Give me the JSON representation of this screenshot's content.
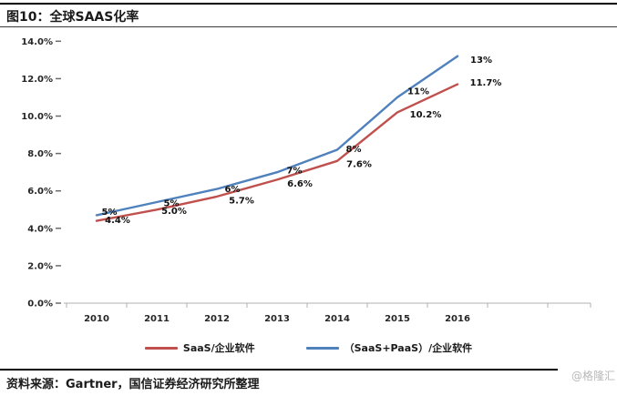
{
  "header": {
    "title": "图10：全球SAAS化率"
  },
  "footer": {
    "source": "资料来源：Gartner，国信证券经济研究所整理",
    "watermark": "@格隆汇"
  },
  "chart_data": {
    "type": "line",
    "title": "全球SAAS化率",
    "categories": [
      "2010",
      "2011",
      "2012",
      "2013",
      "2014",
      "2015",
      "2016"
    ],
    "series": [
      {
        "name": "SaaS/企业软件",
        "color": "#C0504D",
        "values": [
          4.4,
          5.0,
          5.7,
          6.6,
          7.6,
          10.2,
          11.7
        ],
        "labels": [
          "4.4%",
          "5.0%",
          "5.7%",
          "6.6%",
          "7.6%",
          "10.2%",
          "11.7%"
        ]
      },
      {
        "name": "（SaaS+PaaS）/企业软件",
        "color": "#4F81BD",
        "values": [
          4.7,
          5.4,
          6.1,
          7.0,
          8.2,
          11.0,
          13.2
        ],
        "labels": [
          "5%",
          "5%",
          "6%",
          "7%",
          "8%",
          "11%",
          "13%"
        ]
      }
    ],
    "ylim": [
      0,
      14
    ],
    "ytick_step": 2,
    "yticks": [
      "0.0%",
      "2.0%",
      "4.0%",
      "6.0%",
      "8.0%",
      "10.0%",
      "12.0%",
      "14.0%"
    ],
    "xlabel": "",
    "ylabel": "",
    "grid": false,
    "legend_position": "bottom"
  }
}
